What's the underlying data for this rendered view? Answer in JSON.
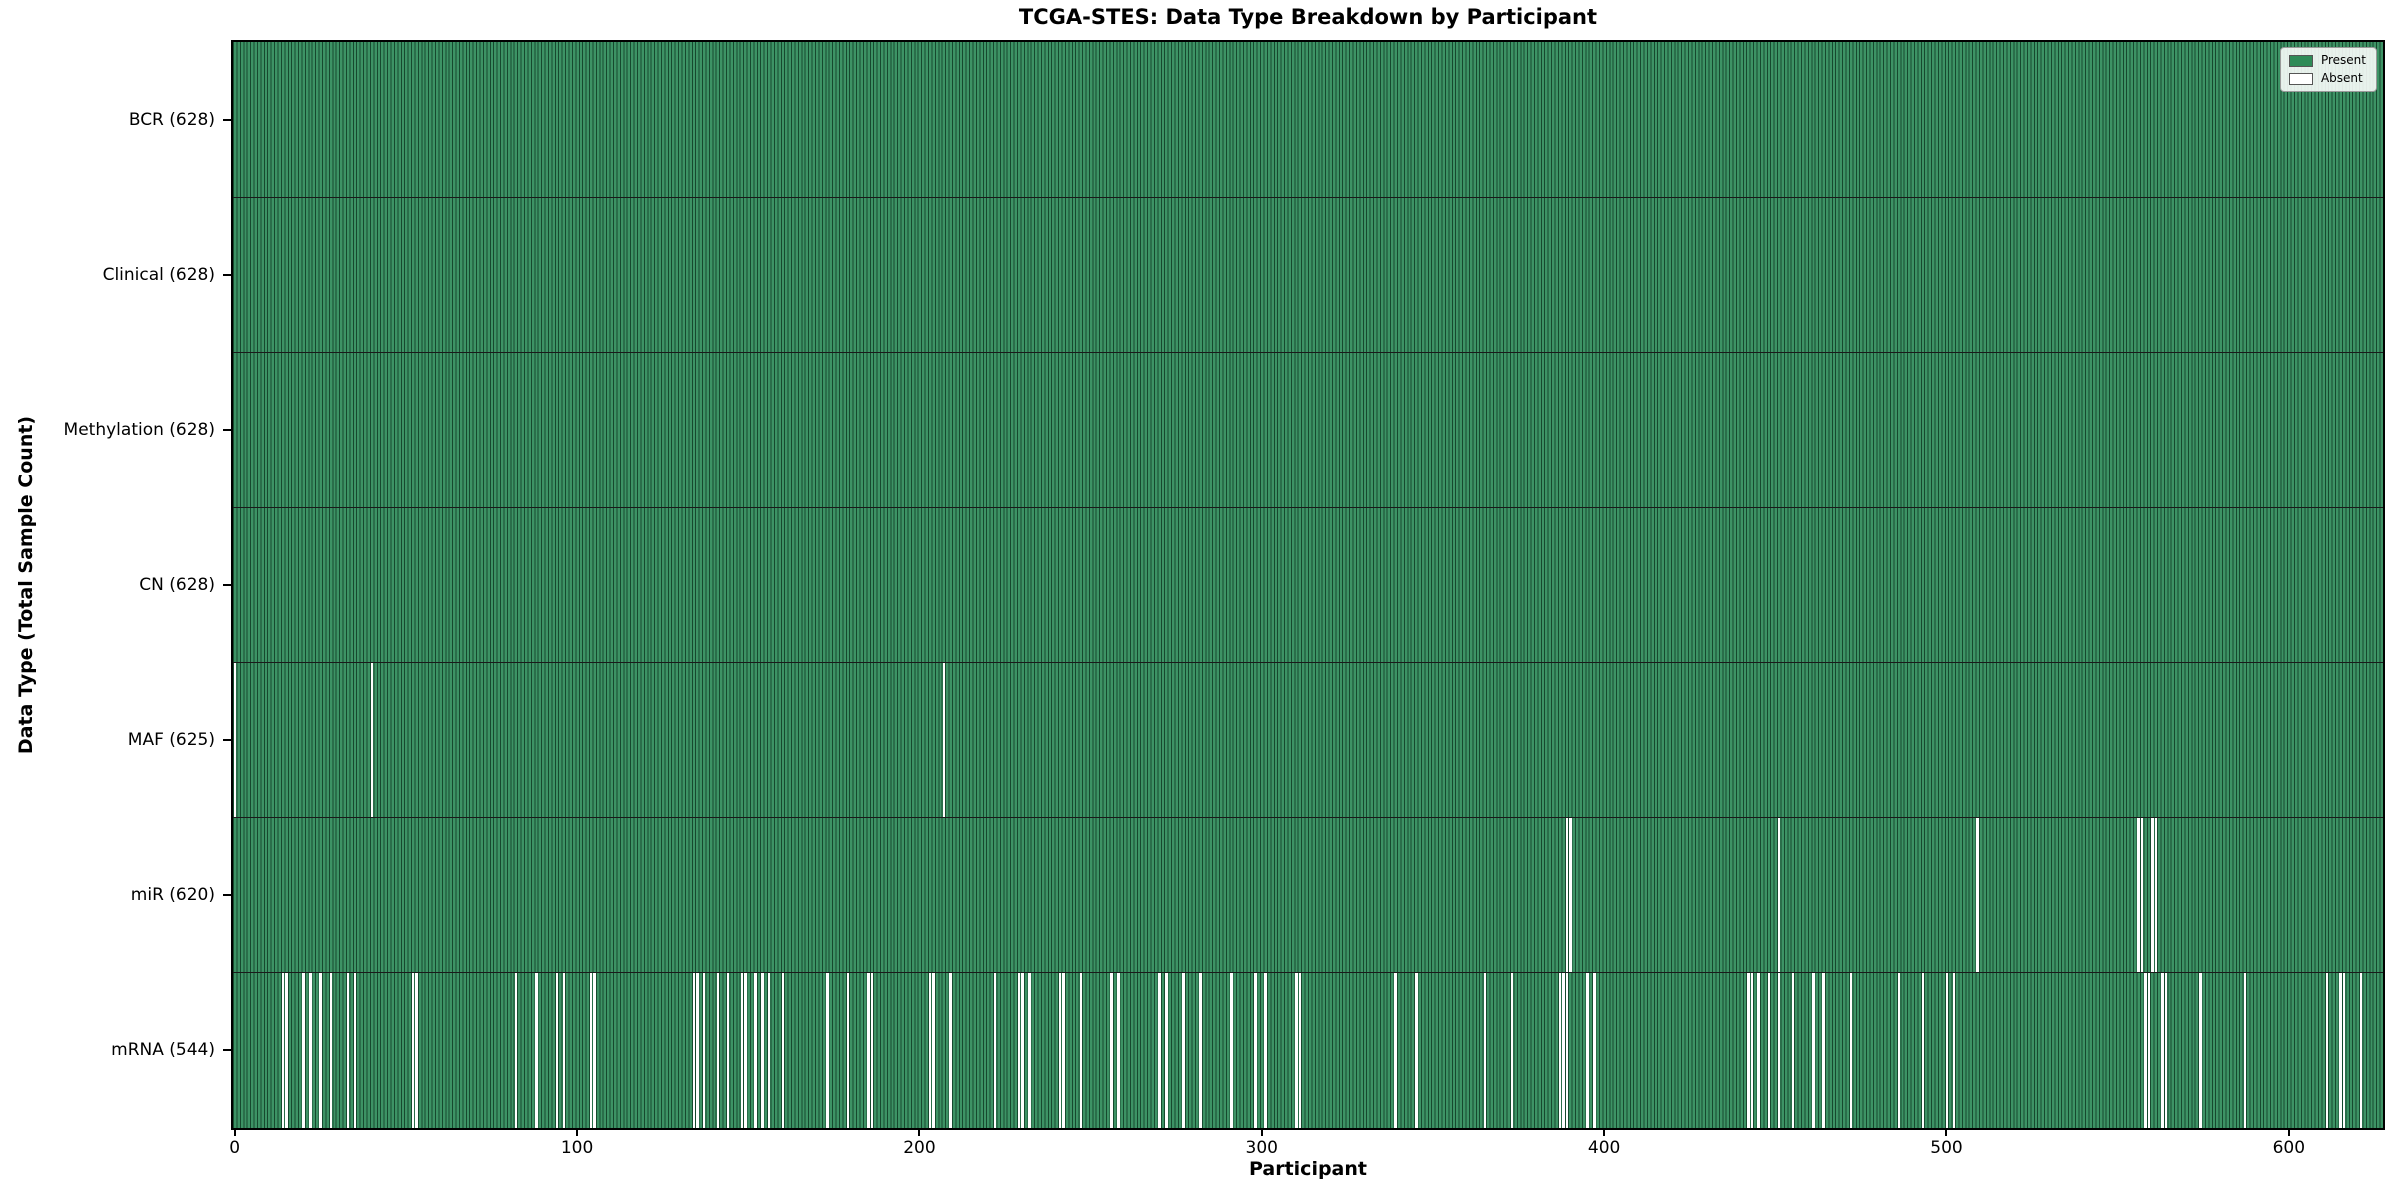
{
  "title": "TCGA-STES: Data Type Breakdown by Participant",
  "xlabel": "Participant",
  "ylabel": "Data Type (Total Sample Count)",
  "colors": {
    "present_fill": "#3d9365",
    "bar_edge": "#16492e",
    "absent_fill": "#ffffff",
    "row_divider": "#1a1a1a",
    "spine": "#000000"
  },
  "chart_data": {
    "type": "heatmap",
    "title": "TCGA-STES: Data Type Breakdown by Participant",
    "xlabel": "Participant",
    "ylabel": "Data Type (Total Sample Count)",
    "n_participants": 628,
    "x_ticks": [
      0,
      100,
      200,
      300,
      400,
      500,
      600
    ],
    "legend_position": "upper right",
    "grid": false,
    "legend": [
      {
        "label": "Present",
        "color": "#2e8b57"
      },
      {
        "label": "Absent",
        "color": "#ffffff"
      }
    ],
    "rows": [
      {
        "name": "BCR",
        "label": "BCR (628)",
        "present_count": 628,
        "absent_participants": []
      },
      {
        "name": "Clinical",
        "label": "Clinical (628)",
        "present_count": 628,
        "absent_participants": []
      },
      {
        "name": "Methylation",
        "label": "Methylation (628)",
        "present_count": 628,
        "absent_participants": []
      },
      {
        "name": "CN",
        "label": "CN (628)",
        "present_count": 628,
        "absent_participants": []
      },
      {
        "name": "MAF",
        "label": "MAF (625)",
        "present_count": 625,
        "absent_participants": [
          0,
          40,
          207
        ]
      },
      {
        "name": "miR",
        "label": "miR (620)",
        "present_count": 620,
        "absent_participants": [
          389,
          390,
          451,
          509,
          556,
          557,
          560,
          561
        ]
      },
      {
        "name": "mRNA",
        "label": "mRNA (544)",
        "present_count": 544,
        "absent_participants": [
          14,
          15,
          20,
          22,
          25,
          28,
          33,
          35,
          52,
          53,
          82,
          88,
          94,
          96,
          104,
          105,
          134,
          135,
          137,
          141,
          144,
          148,
          149,
          152,
          154,
          156,
          160,
          173,
          179,
          185,
          186,
          203,
          204,
          209,
          222,
          229,
          230,
          232,
          241,
          242,
          247,
          256,
          258,
          270,
          272,
          277,
          282,
          291,
          298,
          301,
          310,
          311,
          339,
          345,
          365,
          373,
          387,
          388,
          389,
          395,
          397,
          442,
          443,
          445,
          448,
          451,
          455,
          461,
          464,
          472,
          486,
          493,
          500,
          502,
          558,
          559,
          563,
          564,
          574,
          587,
          611,
          615,
          616,
          621
        ]
      }
    ]
  }
}
